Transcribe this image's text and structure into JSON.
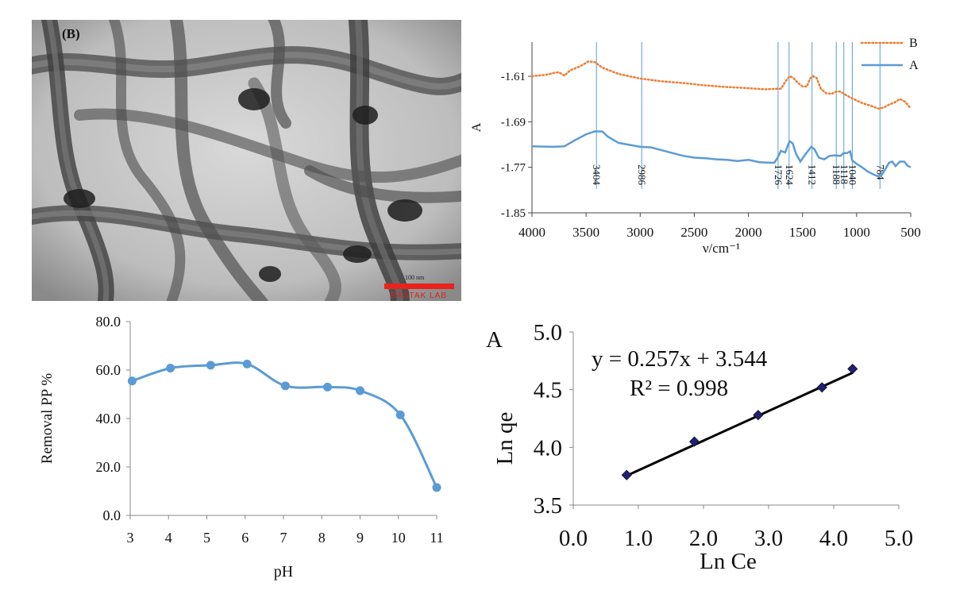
{
  "tem_panel": {
    "label": "(B)",
    "scale_label": "100 nm",
    "watermark": "RASTAK LAB"
  },
  "chart_data": [
    {
      "id": "ftir",
      "type": "line",
      "xlabel": "ν/cm⁻¹",
      "ylabel": "A",
      "xlim": [
        4000,
        500
      ],
      "ylim": [
        -1.85,
        -1.55
      ],
      "xticks": [
        4000,
        3500,
        3000,
        2500,
        2000,
        1500,
        1000,
        500
      ],
      "yticks": [
        -1.85,
        -1.77,
        -1.69,
        -1.61
      ],
      "ytick_labels": [
        "-1.85",
        "-1.77",
        "-1.69",
        "-1.61"
      ],
      "legend_position": "top-right",
      "series": [
        {
          "name": "B",
          "style": "dotted",
          "color": "#ed7d31",
          "points": [
            [
              4000,
              -1.61
            ],
            [
              3900,
              -1.608
            ],
            [
              3850,
              -1.607
            ],
            [
              3800,
              -1.604
            ],
            [
              3750,
              -1.603
            ],
            [
              3700,
              -1.609
            ],
            [
              3650,
              -1.6
            ],
            [
              3550,
              -1.592
            ],
            [
              3480,
              -1.584
            ],
            [
              3420,
              -1.585
            ],
            [
              3350,
              -1.595
            ],
            [
              3200,
              -1.606
            ],
            [
              3000,
              -1.614
            ],
            [
              2800,
              -1.619
            ],
            [
              2600,
              -1.622
            ],
            [
              2400,
              -1.626
            ],
            [
              2200,
              -1.629
            ],
            [
              2000,
              -1.631
            ],
            [
              1850,
              -1.633
            ],
            [
              1750,
              -1.632
            ],
            [
              1700,
              -1.632
            ],
            [
              1660,
              -1.62
            ],
            [
              1620,
              -1.61
            ],
            [
              1590,
              -1.612
            ],
            [
              1550,
              -1.62
            ],
            [
              1500,
              -1.628
            ],
            [
              1460,
              -1.628
            ],
            [
              1430,
              -1.614
            ],
            [
              1400,
              -1.61
            ],
            [
              1370,
              -1.613
            ],
            [
              1330,
              -1.632
            ],
            [
              1280,
              -1.64
            ],
            [
              1230,
              -1.641
            ],
            [
              1190,
              -1.637
            ],
            [
              1150,
              -1.637
            ],
            [
              1100,
              -1.643
            ],
            [
              1050,
              -1.648
            ],
            [
              950,
              -1.657
            ],
            [
              850,
              -1.663
            ],
            [
              800,
              -1.667
            ],
            [
              750,
              -1.665
            ],
            [
              700,
              -1.66
            ],
            [
              650,
              -1.656
            ],
            [
              600,
              -1.65
            ],
            [
              550,
              -1.655
            ],
            [
              500,
              -1.667
            ]
          ]
        },
        {
          "name": "A",
          "style": "solid",
          "color": "#5b9bd5",
          "points": [
            [
              4000,
              -1.733
            ],
            [
              3800,
              -1.734
            ],
            [
              3700,
              -1.733
            ],
            [
              3600,
              -1.722
            ],
            [
              3500,
              -1.712
            ],
            [
              3420,
              -1.707
            ],
            [
              3350,
              -1.707
            ],
            [
              3300,
              -1.716
            ],
            [
              3200,
              -1.727
            ],
            [
              3000,
              -1.734
            ],
            [
              2900,
              -1.735
            ],
            [
              2800,
              -1.74
            ],
            [
              2700,
              -1.745
            ],
            [
              2600,
              -1.75
            ],
            [
              2500,
              -1.753
            ],
            [
              2400,
              -1.754
            ],
            [
              2300,
              -1.756
            ],
            [
              2200,
              -1.757
            ],
            [
              2100,
              -1.759
            ],
            [
              2000,
              -1.757
            ],
            [
              1900,
              -1.761
            ],
            [
              1800,
              -1.762
            ],
            [
              1760,
              -1.762
            ],
            [
              1730,
              -1.753
            ],
            [
              1700,
              -1.741
            ],
            [
              1660,
              -1.744
            ],
            [
              1620,
              -1.724
            ],
            [
              1590,
              -1.728
            ],
            [
              1560,
              -1.746
            ],
            [
              1520,
              -1.76
            ],
            [
              1480,
              -1.749
            ],
            [
              1420,
              -1.734
            ],
            [
              1390,
              -1.738
            ],
            [
              1350,
              -1.753
            ],
            [
              1300,
              -1.756
            ],
            [
              1250,
              -1.75
            ],
            [
              1200,
              -1.749
            ],
            [
              1150,
              -1.75
            ],
            [
              1120,
              -1.745
            ],
            [
              1090,
              -1.745
            ],
            [
              1060,
              -1.742
            ],
            [
              1040,
              -1.758
            ],
            [
              1000,
              -1.764
            ],
            [
              950,
              -1.77
            ],
            [
              900,
              -1.777
            ],
            [
              850,
              -1.782
            ],
            [
              800,
              -1.786
            ],
            [
              770,
              -1.784
            ],
            [
              740,
              -1.775
            ],
            [
              700,
              -1.762
            ],
            [
              670,
              -1.76
            ],
            [
              640,
              -1.768
            ],
            [
              600,
              -1.76
            ],
            [
              560,
              -1.76
            ],
            [
              530,
              -1.767
            ],
            [
              500,
              -1.77
            ]
          ]
        }
      ],
      "peak_annotations": [
        {
          "x": 3404,
          "label": "3404"
        },
        {
          "x": 2986,
          "label": "2986"
        },
        {
          "x": 1726,
          "label": "1726"
        },
        {
          "x": 1624,
          "label": "1624"
        },
        {
          "x": 1412,
          "label": "1412"
        },
        {
          "x": 1188,
          "label": "1188"
        },
        {
          "x": 1118,
          "label": "1118"
        },
        {
          "x": 1040,
          "label": "1040"
        },
        {
          "x": 784,
          "label": "784"
        }
      ]
    },
    {
      "id": "ph",
      "type": "line",
      "xlabel": "pH",
      "ylabel": "Removal PP %",
      "xlim": [
        3,
        11
      ],
      "ylim": [
        0,
        80
      ],
      "xticks": [
        3,
        4,
        5,
        6,
        7,
        8,
        9,
        10,
        11
      ],
      "yticks": [
        0,
        20,
        40,
        60,
        80
      ],
      "ytick_labels": [
        "0.0",
        "20.0",
        "40.0",
        "60.0",
        "80.0"
      ],
      "color": "#5b9bd5",
      "x": [
        3.05,
        4.05,
        5.1,
        6.05,
        7.05,
        8.15,
        9.0,
        10.05,
        11.0
      ],
      "y": [
        55.5,
        60.8,
        62.0,
        62.5,
        53.5,
        53.0,
        51.5,
        41.5,
        11.5
      ]
    },
    {
      "id": "freundlich",
      "type": "scatter",
      "panel_label": "A",
      "xlabel": "Ln Ce",
      "ylabel": "Ln qe",
      "xlim": [
        0,
        5
      ],
      "ylim": [
        3.5,
        5
      ],
      "xticks": [
        0,
        1,
        2,
        3,
        4,
        5
      ],
      "yticks": [
        3.5,
        4.0,
        4.5,
        5.0
      ],
      "xtick_labels": [
        "0.0",
        "1.0",
        "2.0",
        "3.0",
        "4.0",
        "5.0"
      ],
      "ytick_labels": [
        "3.5",
        "4.0",
        "4.5",
        "5.0"
      ],
      "marker_color": "#1f1f7a",
      "x": [
        0.82,
        1.86,
        2.84,
        3.82,
        4.29
      ],
      "y": [
        3.76,
        4.05,
        4.28,
        4.52,
        4.68
      ],
      "trendline": {
        "slope": 0.257,
        "intercept": 3.544,
        "x_range": [
          0.82,
          4.29
        ]
      },
      "equation": "y = 0.257x + 3.544",
      "r_squared": "R² = 0.998"
    }
  ]
}
